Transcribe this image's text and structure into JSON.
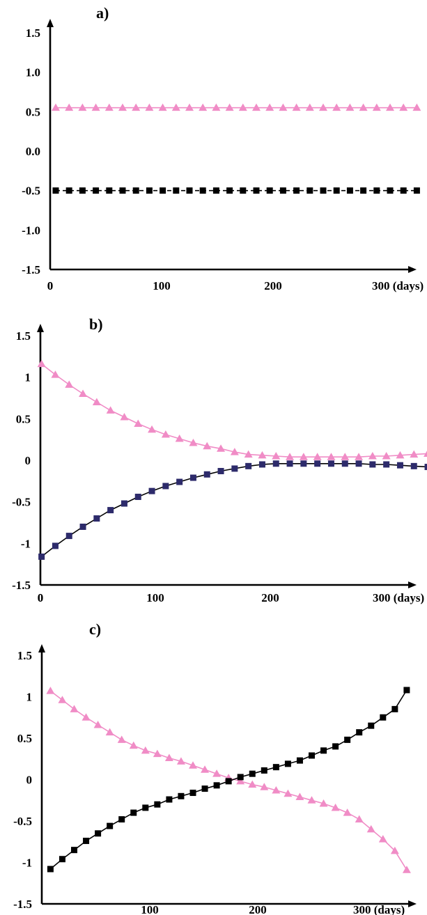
{
  "chart_data": [
    {
      "type": "line",
      "panel_label": "a)",
      "x_tick_labels": [
        "0",
        "100",
        "200",
        "300 (days)"
      ],
      "x_ticks": [
        0,
        100,
        200,
        300
      ],
      "y_tick_labels": [
        "1.5",
        "1.0",
        "0.5",
        "0.0",
        "-0.5",
        "-1.0",
        "-1.5"
      ],
      "y_ticks": [
        1.5,
        1.0,
        0.5,
        0.0,
        -0.5,
        -1.0,
        -1.5
      ],
      "xlim": [
        0,
        340
      ],
      "ylim": [
        -1.5,
        1.5
      ],
      "series": [
        {
          "marker": "triangle",
          "color": "#f08cc6",
          "line_color": "#f08cc6",
          "line_style": "solid",
          "x": [
            5,
            17,
            29,
            41,
            53,
            65,
            77,
            89,
            101,
            113,
            125,
            137,
            149,
            161,
            173,
            185,
            197,
            209,
            221,
            233,
            245,
            257,
            269,
            281,
            293,
            305,
            317,
            329
          ],
          "values": [
            0.55,
            0.55,
            0.55,
            0.55,
            0.55,
            0.55,
            0.55,
            0.55,
            0.55,
            0.55,
            0.55,
            0.55,
            0.55,
            0.55,
            0.55,
            0.55,
            0.55,
            0.55,
            0.55,
            0.55,
            0.55,
            0.55,
            0.55,
            0.55,
            0.55,
            0.55,
            0.55,
            0.55
          ]
        },
        {
          "marker": "square",
          "color": "#000000",
          "line_color": "#000000",
          "line_style": "dashed",
          "x": [
            5,
            17,
            29,
            41,
            53,
            65,
            77,
            89,
            101,
            113,
            125,
            137,
            149,
            161,
            173,
            185,
            197,
            209,
            221,
            233,
            245,
            257,
            269,
            281,
            293,
            305,
            317,
            329
          ],
          "values": [
            -0.5,
            -0.5,
            -0.5,
            -0.5,
            -0.5,
            -0.5,
            -0.5,
            -0.5,
            -0.5,
            -0.5,
            -0.5,
            -0.5,
            -0.5,
            -0.5,
            -0.5,
            -0.5,
            -0.5,
            -0.5,
            -0.5,
            -0.5,
            -0.5,
            -0.5,
            -0.5,
            -0.5,
            -0.5,
            -0.5,
            -0.5,
            -0.5
          ]
        }
      ]
    },
    {
      "type": "line",
      "panel_label": "b)",
      "x_tick_labels": [
        "0",
        "100",
        "200",
        "300 (days)"
      ],
      "x_ticks": [
        0,
        100,
        200,
        300
      ],
      "y_tick_labels": [
        "1.5",
        "1",
        "0.5",
        "0",
        "-0.5",
        "-1",
        "-1.5"
      ],
      "y_ticks": [
        1.5,
        1,
        0.5,
        0,
        -0.5,
        -1,
        -1.5
      ],
      "xlim": [
        0,
        345
      ],
      "ylim": [
        -1.5,
        1.5
      ],
      "series": [
        {
          "marker": "triangle",
          "color": "#f08cc6",
          "line_color": "#f08cc6",
          "line_style": "solid",
          "x": [
            1,
            13,
            25,
            37,
            49,
            61,
            73,
            85,
            97,
            109,
            121,
            133,
            145,
            157,
            169,
            181,
            193,
            205,
            217,
            229,
            241,
            253,
            265,
            277,
            289,
            301,
            313,
            325,
            337
          ],
          "values": [
            1.16,
            1.03,
            0.91,
            0.8,
            0.7,
            0.6,
            0.52,
            0.44,
            0.37,
            0.31,
            0.26,
            0.21,
            0.17,
            0.14,
            0.1,
            0.07,
            0.06,
            0.05,
            0.04,
            0.04,
            0.04,
            0.04,
            0.04,
            0.04,
            0.05,
            0.05,
            0.06,
            0.07,
            0.08
          ]
        },
        {
          "marker": "square",
          "color": "#2d2b6b",
          "line_color": "#000000",
          "line_style": "solid",
          "x": [
            1,
            13,
            25,
            37,
            49,
            61,
            73,
            85,
            97,
            109,
            121,
            133,
            145,
            157,
            169,
            181,
            193,
            205,
            217,
            229,
            241,
            253,
            265,
            277,
            289,
            301,
            313,
            325,
            337
          ],
          "values": [
            -1.16,
            -1.03,
            -0.91,
            -0.8,
            -0.7,
            -0.6,
            -0.52,
            -0.44,
            -0.37,
            -0.31,
            -0.26,
            -0.21,
            -0.17,
            -0.13,
            -0.1,
            -0.07,
            -0.05,
            -0.04,
            -0.04,
            -0.04,
            -0.04,
            -0.04,
            -0.04,
            -0.04,
            -0.05,
            -0.05,
            -0.06,
            -0.07,
            -0.08
          ]
        }
      ]
    },
    {
      "type": "line",
      "panel_label": "c)",
      "x_tick_labels": [
        "100",
        "200",
        "300 (days)"
      ],
      "x_ticks": [
        100,
        200,
        300
      ],
      "y_tick_labels": [
        "1.5",
        "1",
        "0.5",
        "0",
        "-0.5",
        "-1",
        "-1.5"
      ],
      "y_ticks": [
        1.5,
        1,
        0.5,
        0,
        -0.5,
        -1,
        -1.5
      ],
      "xlim": [
        0,
        345
      ],
      "ylim": [
        -1.5,
        1.5
      ],
      "series": [
        {
          "marker": "triangle",
          "color": "#f08cc6",
          "line_color": "#f08cc6",
          "line_style": "solid",
          "x": [
            8,
            19,
            30,
            41,
            52,
            63,
            74,
            85,
            96,
            107,
            118,
            129,
            140,
            151,
            162,
            173,
            184,
            195,
            206,
            217,
            228,
            239,
            250,
            261,
            272,
            283,
            294,
            305,
            316,
            327,
            338
          ],
          "values": [
            1.07,
            0.96,
            0.85,
            0.75,
            0.66,
            0.57,
            0.48,
            0.41,
            0.35,
            0.31,
            0.26,
            0.22,
            0.17,
            0.12,
            0.07,
            0.02,
            -0.02,
            -0.06,
            -0.09,
            -0.13,
            -0.17,
            -0.21,
            -0.25,
            -0.29,
            -0.34,
            -0.4,
            -0.48,
            -0.6,
            -0.72,
            -0.86,
            -1.09
          ]
        },
        {
          "marker": "square",
          "color": "#000000",
          "line_color": "#000000",
          "line_style": "solid",
          "x": [
            8,
            19,
            30,
            41,
            52,
            63,
            74,
            85,
            96,
            107,
            118,
            129,
            140,
            151,
            162,
            173,
            184,
            195,
            206,
            217,
            228,
            239,
            250,
            261,
            272,
            283,
            294,
            305,
            316,
            327,
            338
          ],
          "values": [
            -1.08,
            -0.96,
            -0.85,
            -0.74,
            -0.65,
            -0.56,
            -0.48,
            -0.4,
            -0.34,
            -0.3,
            -0.24,
            -0.2,
            -0.16,
            -0.11,
            -0.07,
            -0.02,
            0.03,
            0.07,
            0.11,
            0.15,
            0.19,
            0.23,
            0.29,
            0.35,
            0.4,
            0.48,
            0.57,
            0.65,
            0.75,
            0.85,
            1.08
          ]
        }
      ]
    }
  ]
}
